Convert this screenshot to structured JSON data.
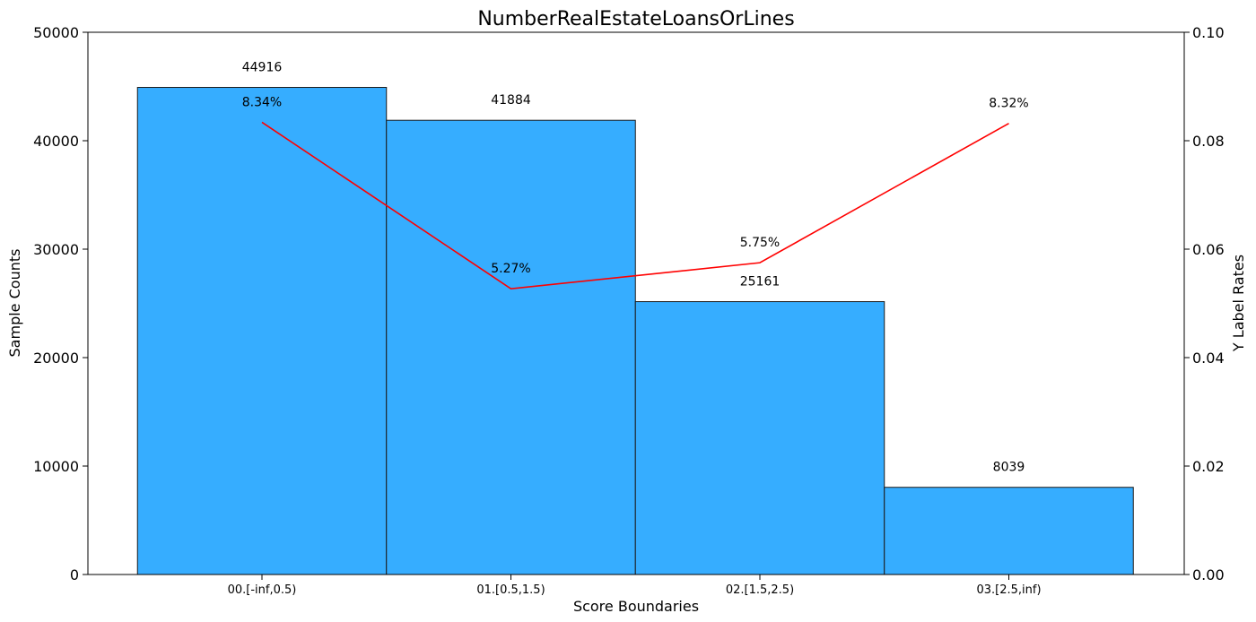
{
  "chart_data": {
    "type": "bar",
    "title": "NumberRealEstateLoansOrLines",
    "xlabel": "Score Boundaries",
    "ylabel": "Sample Counts",
    "y2label": "Y Label Rates",
    "categories": [
      "00.[-inf,0.5)",
      "01.[0.5,1.5)",
      "02.[1.5,2.5)",
      "03.[2.5,inf)"
    ],
    "series": [
      {
        "type": "bar",
        "axis": "left",
        "values": [
          44916,
          41884,
          25161,
          8039
        ],
        "labels": [
          "44916",
          "41884",
          "25161",
          "8039"
        ],
        "color": "#36adff"
      },
      {
        "type": "line",
        "axis": "right",
        "values": [
          0.0834,
          0.0527,
          0.0575,
          0.0832
        ],
        "labels": [
          "8.34%",
          "5.27%",
          "5.75%",
          "8.32%"
        ],
        "color": "#ff0000"
      }
    ],
    "ylim": [
      0,
      50000
    ],
    "y2lim": [
      0,
      0.1
    ],
    "yticks": [
      "0",
      "10000",
      "20000",
      "30000",
      "40000",
      "50000"
    ],
    "y2ticks": [
      "0.00",
      "0.02",
      "0.04",
      "0.06",
      "0.08",
      "0.10"
    ],
    "grid": false,
    "legend": "none"
  }
}
